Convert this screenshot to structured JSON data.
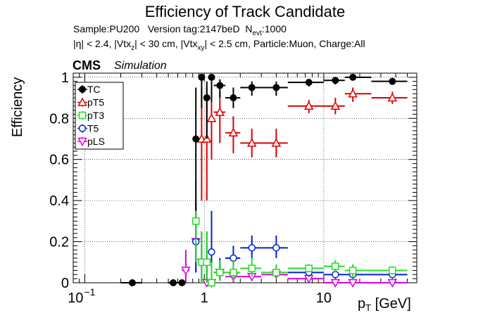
{
  "title": "Efficiency of Track Candidate",
  "info": {
    "sample": "Sample:PU200",
    "version": "Version tag:2147beD",
    "nevt_prefix": "N",
    "nevt_sub": "evt",
    "nevt_value": ":1000",
    "cuts": [
      {
        "t": "|η| < 2.4, |Vtx",
        "sub": ""
      },
      {
        "t": "z",
        "sub": "1"
      },
      {
        "t": "| < 30 cm, |Vtx",
        "sub": ""
      },
      {
        "t": "xy",
        "sub": "1"
      },
      {
        "t": "| < 2.5 cm, Particle:Muon, Charge:All",
        "sub": ""
      }
    ]
  },
  "cms_label": "CMS",
  "sim_label": "Simulation",
  "chart_data": {
    "type": "scatter",
    "xlabel_main": "p",
    "xlabel_sub": "T",
    "xlabel_unit": "[GeV]",
    "ylabel": "Efficiency",
    "xscale": "log",
    "xlim": [
      0.08,
      60
    ],
    "ylim": [
      0,
      1.02
    ],
    "grid": true,
    "legend_position": "top-left",
    "xticks": [
      {
        "v": 0.1,
        "base": "10",
        "exp": "−1"
      },
      {
        "v": 1,
        "label": "1"
      },
      {
        "v": 10,
        "label": "10"
      }
    ],
    "yticks": [
      "0",
      "0.2",
      "0.4",
      "0.6",
      "0.8",
      "1"
    ],
    "series": [
      {
        "name": "TC",
        "color": "#000000",
        "marker": "filled-circle",
        "points": [
          {
            "x": 0.25,
            "y": 0.0,
            "xlo": 0.2,
            "xhi": 0.3,
            "elo": 0.0,
            "ehi": 0.0
          },
          {
            "x": 0.55,
            "y": 0.0,
            "xlo": 0.5,
            "xhi": 0.6,
            "elo": 0.0,
            "ehi": 0.0
          },
          {
            "x": 0.65,
            "y": 0.0,
            "xlo": 0.6,
            "xhi": 0.7,
            "elo": 0.0,
            "ehi": 0.0
          },
          {
            "x": 0.85,
            "y": 0.7,
            "xlo": 0.8,
            "xhi": 0.9,
            "elo": 0.35,
            "ehi": 0.25
          },
          {
            "x": 0.95,
            "y": 1.0,
            "xlo": 0.9,
            "xhi": 1.0,
            "elo": 0.15,
            "ehi": 0.0
          },
          {
            "x": 1.05,
            "y": 0.9,
            "xlo": 1.0,
            "xhi": 1.1,
            "elo": 0.2,
            "ehi": 0.08
          },
          {
            "x": 1.15,
            "y": 1.0,
            "xlo": 1.1,
            "xhi": 1.2,
            "elo": 0.12,
            "ehi": 0.0
          },
          {
            "x": 1.35,
            "y": 0.96,
            "xlo": 1.2,
            "xhi": 1.5,
            "elo": 0.06,
            "ehi": 0.03
          },
          {
            "x": 1.75,
            "y": 0.9,
            "xlo": 1.5,
            "xhi": 2.0,
            "elo": 0.05,
            "ehi": 0.05
          },
          {
            "x": 2.5,
            "y": 0.95,
            "xlo": 2.0,
            "xhi": 3.0,
            "elo": 0.04,
            "ehi": 0.03
          },
          {
            "x": 4.0,
            "y": 0.95,
            "xlo": 3.0,
            "xhi": 5.0,
            "elo": 0.04,
            "ehi": 0.03
          },
          {
            "x": 7.5,
            "y": 0.975,
            "xlo": 5.0,
            "xhi": 10.0,
            "elo": 0.02,
            "ehi": 0.015
          },
          {
            "x": 12.5,
            "y": 0.985,
            "xlo": 10.0,
            "xhi": 15.0,
            "elo": 0.02,
            "ehi": 0.01
          },
          {
            "x": 17.5,
            "y": 1.0,
            "xlo": 15.0,
            "xhi": 25.0,
            "elo": 0.01,
            "ehi": 0.0
          },
          {
            "x": 37.5,
            "y": 0.98,
            "xlo": 25.0,
            "xhi": 50.0,
            "elo": 0.015,
            "ehi": 0.01
          }
        ]
      },
      {
        "name": "pT5",
        "color": "#dd0000",
        "marker": "open-triangle",
        "points": [
          {
            "x": 0.95,
            "y": 0.7,
            "xlo": 0.9,
            "xhi": 1.0,
            "elo": 0.3,
            "ehi": 0.25
          },
          {
            "x": 1.05,
            "y": 0.7,
            "xlo": 1.0,
            "xhi": 1.1,
            "elo": 0.3,
            "ehi": 0.25
          },
          {
            "x": 1.15,
            "y": 0.8,
            "xlo": 1.1,
            "xhi": 1.2,
            "elo": 0.2,
            "ehi": 0.15
          },
          {
            "x": 1.35,
            "y": 0.83,
            "xlo": 1.2,
            "xhi": 1.5,
            "elo": 0.15,
            "ehi": 0.1
          },
          {
            "x": 1.75,
            "y": 0.73,
            "xlo": 1.5,
            "xhi": 2.0,
            "elo": 0.1,
            "ehi": 0.08
          },
          {
            "x": 2.5,
            "y": 0.68,
            "xlo": 2.0,
            "xhi": 3.0,
            "elo": 0.07,
            "ehi": 0.07
          },
          {
            "x": 4.0,
            "y": 0.68,
            "xlo": 3.0,
            "xhi": 5.0,
            "elo": 0.07,
            "ehi": 0.07
          },
          {
            "x": 7.5,
            "y": 0.86,
            "xlo": 5.0,
            "xhi": 10.0,
            "elo": 0.035,
            "ehi": 0.03
          },
          {
            "x": 12.5,
            "y": 0.86,
            "xlo": 10.0,
            "xhi": 15.0,
            "elo": 0.04,
            "ehi": 0.04
          },
          {
            "x": 17.5,
            "y": 0.92,
            "xlo": 15.0,
            "xhi": 25.0,
            "elo": 0.04,
            "ehi": 0.03
          },
          {
            "x": 37.5,
            "y": 0.9,
            "xlo": 25.0,
            "xhi": 50.0,
            "elo": 0.03,
            "ehi": 0.03
          }
        ]
      },
      {
        "name": "pT3",
        "color": "#22dd22",
        "marker": "open-square",
        "points": [
          {
            "x": 0.85,
            "y": 0.3,
            "xlo": 0.8,
            "xhi": 0.9,
            "elo": 0.2,
            "ehi": 0.2
          },
          {
            "x": 0.95,
            "y": 0.1,
            "xlo": 0.9,
            "xhi": 1.0,
            "elo": 0.1,
            "ehi": 0.15
          },
          {
            "x": 1.05,
            "y": 0.1,
            "xlo": 1.0,
            "xhi": 1.1,
            "elo": 0.1,
            "ehi": 0.15
          },
          {
            "x": 1.15,
            "y": 0.0,
            "xlo": 1.1,
            "xhi": 1.2,
            "elo": 0.0,
            "ehi": 0.1
          },
          {
            "x": 1.35,
            "y": 0.05,
            "xlo": 1.2,
            "xhi": 1.5,
            "elo": 0.04,
            "ehi": 0.06
          },
          {
            "x": 1.75,
            "y": 0.05,
            "xlo": 1.5,
            "xhi": 2.0,
            "elo": 0.04,
            "ehi": 0.06
          },
          {
            "x": 2.5,
            "y": 0.07,
            "xlo": 2.0,
            "xhi": 3.0,
            "elo": 0.04,
            "ehi": 0.05
          },
          {
            "x": 4.0,
            "y": 0.05,
            "xlo": 3.0,
            "xhi": 5.0,
            "elo": 0.03,
            "ehi": 0.04
          },
          {
            "x": 7.5,
            "y": 0.07,
            "xlo": 5.0,
            "xhi": 10.0,
            "elo": 0.02,
            "ehi": 0.02
          },
          {
            "x": 12.5,
            "y": 0.08,
            "xlo": 10.0,
            "xhi": 15.0,
            "elo": 0.03,
            "ehi": 0.03
          },
          {
            "x": 17.5,
            "y": 0.06,
            "xlo": 15.0,
            "xhi": 25.0,
            "elo": 0.03,
            "ehi": 0.03
          },
          {
            "x": 37.5,
            "y": 0.06,
            "xlo": 25.0,
            "xhi": 50.0,
            "elo": 0.02,
            "ehi": 0.02
          }
        ]
      },
      {
        "name": "T5",
        "color": "#0022cc",
        "marker": "open-circle",
        "points": [
          {
            "x": 0.85,
            "y": 0.2,
            "xlo": 0.8,
            "xhi": 0.9,
            "elo": 0.15,
            "ehi": 0.2
          },
          {
            "x": 0.95,
            "y": 0.1,
            "xlo": 0.9,
            "xhi": 1.0,
            "elo": 0.1,
            "ehi": 0.15
          },
          {
            "x": 1.05,
            "y": 0.1,
            "xlo": 1.0,
            "xhi": 1.1,
            "elo": 0.1,
            "ehi": 0.15
          },
          {
            "x": 1.15,
            "y": 0.15,
            "xlo": 1.1,
            "xhi": 1.2,
            "elo": 0.1,
            "ehi": 0.2
          },
          {
            "x": 1.35,
            "y": 0.05,
            "xlo": 1.2,
            "xhi": 1.5,
            "elo": 0.04,
            "ehi": 0.07
          },
          {
            "x": 1.75,
            "y": 0.12,
            "xlo": 1.5,
            "xhi": 2.0,
            "elo": 0.05,
            "ehi": 0.06
          },
          {
            "x": 2.5,
            "y": 0.17,
            "xlo": 2.0,
            "xhi": 3.0,
            "elo": 0.05,
            "ehi": 0.06
          },
          {
            "x": 4.0,
            "y": 0.17,
            "xlo": 3.0,
            "xhi": 5.0,
            "elo": 0.05,
            "ehi": 0.06
          },
          {
            "x": 7.5,
            "y": 0.05,
            "xlo": 5.0,
            "xhi": 10.0,
            "elo": 0.02,
            "ehi": 0.02
          },
          {
            "x": 12.5,
            "y": 0.04,
            "xlo": 10.0,
            "xhi": 15.0,
            "elo": 0.02,
            "ehi": 0.03
          },
          {
            "x": 17.5,
            "y": 0.04,
            "xlo": 15.0,
            "xhi": 25.0,
            "elo": 0.02,
            "ehi": 0.03
          },
          {
            "x": 37.5,
            "y": 0.04,
            "xlo": 25.0,
            "xhi": 50.0,
            "elo": 0.02,
            "ehi": 0.02
          }
        ]
      },
      {
        "name": "pLS",
        "color": "#dd00dd",
        "marker": "open-triangle-down",
        "points": [
          {
            "x": 0.7,
            "y": 0.06,
            "xlo": 0.65,
            "xhi": 0.75,
            "elo": 0.06,
            "ehi": 0.1
          },
          {
            "x": 0.85,
            "y": 0.2,
            "xlo": 0.8,
            "xhi": 0.9,
            "elo": 0.15,
            "ehi": 0.2
          },
          {
            "x": 0.95,
            "y": 0.1,
            "xlo": 0.9,
            "xhi": 1.0,
            "elo": 0.1,
            "ehi": 0.15
          },
          {
            "x": 1.05,
            "y": 0.0,
            "xlo": 1.0,
            "xhi": 1.1,
            "elo": 0.0,
            "ehi": 0.1
          },
          {
            "x": 1.15,
            "y": 0.0,
            "xlo": 1.1,
            "xhi": 1.2,
            "elo": 0.0,
            "ehi": 0.1
          },
          {
            "x": 1.35,
            "y": 0.05,
            "xlo": 1.2,
            "xhi": 1.5,
            "elo": 0.04,
            "ehi": 0.06
          },
          {
            "x": 1.75,
            "y": 0.03,
            "xlo": 1.5,
            "xhi": 2.0,
            "elo": 0.03,
            "ehi": 0.04
          },
          {
            "x": 2.5,
            "y": 0.03,
            "xlo": 2.0,
            "xhi": 3.0,
            "elo": 0.02,
            "ehi": 0.03
          },
          {
            "x": 4.0,
            "y": 0.04,
            "xlo": 3.0,
            "xhi": 5.0,
            "elo": 0.02,
            "ehi": 0.03
          },
          {
            "x": 7.5,
            "y": 0.02,
            "xlo": 5.0,
            "xhi": 10.0,
            "elo": 0.01,
            "ehi": 0.01
          },
          {
            "x": 12.5,
            "y": 0.0,
            "xlo": 10.0,
            "xhi": 15.0,
            "elo": 0.0,
            "ehi": 0.02
          },
          {
            "x": 17.5,
            "y": 0.0,
            "xlo": 15.0,
            "xhi": 25.0,
            "elo": 0.0,
            "ehi": 0.015
          },
          {
            "x": 37.5,
            "y": 0.0,
            "xlo": 25.0,
            "xhi": 50.0,
            "elo": 0.0,
            "ehi": 0.01
          }
        ]
      }
    ]
  }
}
